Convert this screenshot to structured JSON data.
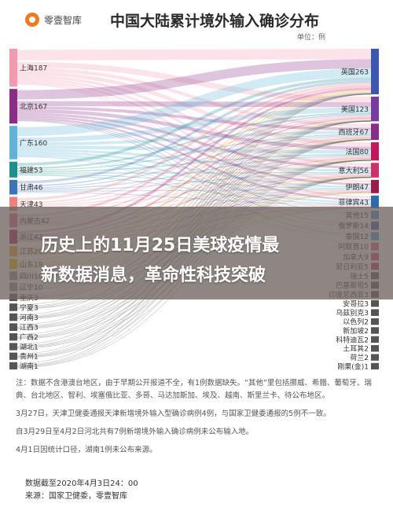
{
  "header": {
    "logo_text": "零壹智库",
    "title": "中国大陆累计境外输入确诊分布",
    "unit": "单位：例"
  },
  "overlay": {
    "line1": "历史上的11月25日美球疫情最",
    "line2": "新数据消息，革命性科技突破"
  },
  "chart_data": {
    "type": "sankey",
    "left": [
      {
        "label": "上海187",
        "color": "#f29bb0"
      },
      {
        "label": "北京167",
        "color": "#8a2d86"
      },
      {
        "label": "广东160",
        "color": "#5fb3d9"
      },
      {
        "label": "福建53",
        "color": "#1e8f8f"
      },
      {
        "label": "甘肃46",
        "color": "#3d74b8"
      },
      {
        "label": "天津43",
        "color": "#f08080"
      },
      {
        "label": "内蒙古42",
        "color": "#e45a8c"
      },
      {
        "label": "浙江42",
        "color": "#b0155a"
      },
      {
        "label": "江苏20",
        "color": "#e8a020"
      },
      {
        "label": "山东19",
        "color": "#f0b000"
      },
      {
        "label": "四川10",
        "color": "#888888"
      },
      {
        "label": "辽宁10",
        "color": "#888888"
      },
      {
        "label": "重庆3",
        "color": "#555555"
      },
      {
        "label": "宁夏3",
        "color": "#555555"
      },
      {
        "label": "河南3",
        "color": "#555555"
      },
      {
        "label": "江西3",
        "color": "#555555"
      },
      {
        "label": "广西2",
        "color": "#555555"
      },
      {
        "label": "湖北1",
        "color": "#555555"
      },
      {
        "label": "贵州1",
        "color": "#555555"
      },
      {
        "label": "湖南1",
        "color": "#555555"
      }
    ],
    "right": [
      {
        "label": "英国263",
        "color": "#3b58b0"
      },
      {
        "label": "美国123",
        "color": "#7a3aa0"
      },
      {
        "label": "西班牙67",
        "color": "#8a2d86"
      },
      {
        "label": "法国80",
        "color": "#c2185b"
      },
      {
        "label": "意大利56",
        "color": "#d0306a"
      },
      {
        "label": "伊朗47",
        "color": "#9c1a4a"
      },
      {
        "label": "菲律宾43",
        "color": "#2a6db0"
      },
      {
        "label": "其他15",
        "color": "#4a8fd0"
      },
      {
        "label": "俄罗斯14",
        "color": "#3b58b0"
      },
      {
        "label": "泰国12",
        "color": "#3a9ad8"
      },
      {
        "label": "阿联酋10",
        "color": "#e05a8a"
      },
      {
        "label": "加拿大9",
        "color": "#d04070"
      },
      {
        "label": "尼日利亚5",
        "color": "#c03060"
      },
      {
        "label": "瑞士5",
        "color": "#555555"
      },
      {
        "label": "巴基斯坦5",
        "color": "#555555"
      },
      {
        "label": "印度尼西亚3",
        "color": "#555555"
      },
      {
        "label": "安哥拉3",
        "color": "#555555"
      },
      {
        "label": "乌兹别克3",
        "color": "#555555"
      },
      {
        "label": "以色列2",
        "color": "#555555"
      },
      {
        "label": "新加坡2",
        "color": "#555555"
      },
      {
        "label": "科特迪瓦2",
        "color": "#555555"
      },
      {
        "label": "土耳其2",
        "color": "#555555"
      },
      {
        "label": "荷兰2",
        "color": "#555555"
      },
      {
        "label": "刚果(金)1",
        "color": "#555555"
      }
    ]
  },
  "notes": {
    "n1": "注：数据不含港澳台地区，由于早期公开报道不全，有1例数据缺失。“其他”里包括挪威、希腊、葡萄牙、瑞典、台北地区、智利、埃塞俄比亚、多哥、马达加斯加、埃及、越南、斯里兰卡、待公布地区。",
    "n2": "3月27日，天津卫健委通报天津新增境外输入型确诊病例4例，与国家卫健委通报的5例不一致。",
    "n3": "自3月29日至4月2日河北共有7例新增境外输入确诊病例未公布输入地。",
    "n4": "4月1日因统计口径，湖南1例未公布来源。"
  },
  "footer": {
    "date": "数据截至2020年4月3日24：00",
    "source": "来源：国家卫健委，零壹智库"
  }
}
